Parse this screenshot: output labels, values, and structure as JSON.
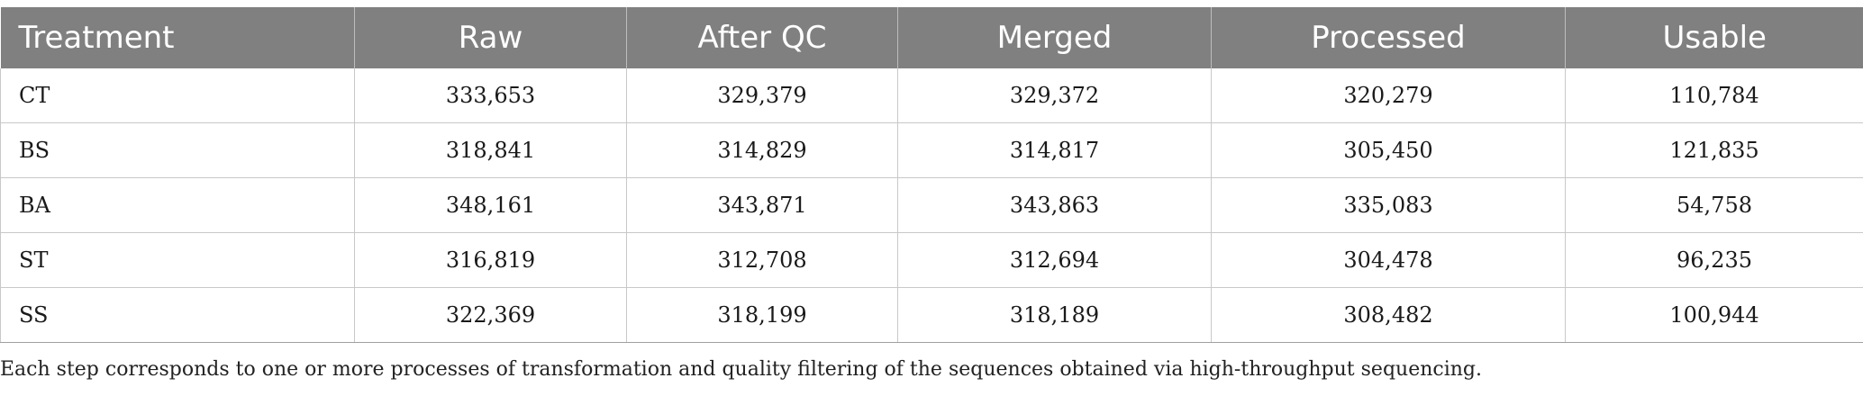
{
  "table": {
    "headers": [
      "Treatment",
      "Raw",
      "After QC",
      "Merged",
      "Processed",
      "Usable"
    ],
    "rows": [
      [
        "CT",
        "333,653",
        "329,379",
        "329,372",
        "320,279",
        "110,784"
      ],
      [
        "BS",
        "318,841",
        "314,829",
        "314,817",
        "305,450",
        "121,835"
      ],
      [
        "BA",
        "348,161",
        "343,871",
        "343,863",
        "335,083",
        "54,758"
      ],
      [
        "ST",
        "316,819",
        "312,708",
        "312,694",
        "304,478",
        "96,235"
      ],
      [
        "SS",
        "322,369",
        "318,199",
        "318,189",
        "308,482",
        "100,944"
      ]
    ],
    "header_bg": "#808080"
  },
  "footnote": "Each step corresponds to one or more processes of transformation and quality filtering of the sequences obtained via high-throughput sequencing."
}
